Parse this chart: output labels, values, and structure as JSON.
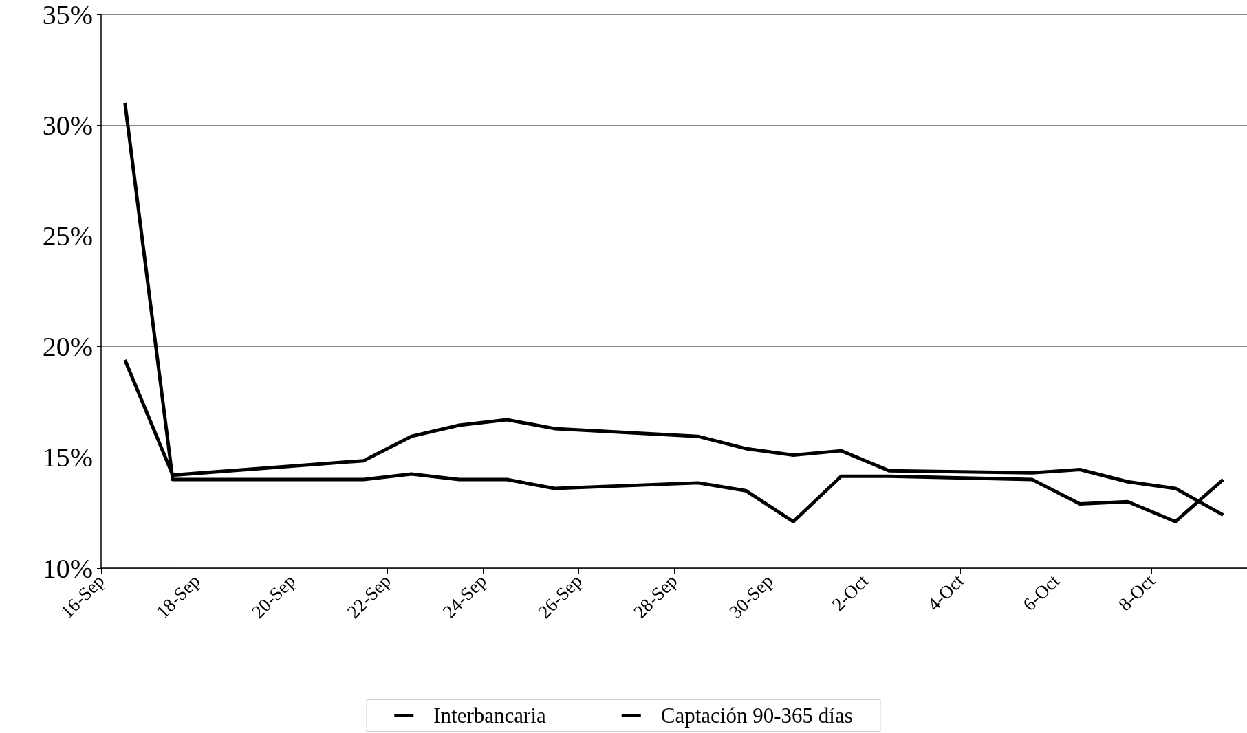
{
  "chart_data": {
    "type": "line",
    "x": [
      "--09-16T12:00",
      "--09-17T12:00",
      "--09-21T12:00",
      "--09-22T12:00",
      "--09-23T12:00",
      "--09-24T12:00",
      "--09-25T12:00",
      "--09-28T12:00",
      "--09-29T12:00",
      "--09-30T12:00",
      "--10-01T12:00",
      "--10-02T12:00",
      "--10-05T12:00",
      "--10-06T12:00",
      "--10-07T12:00",
      "--10-08T12:00",
      "--10-09T12:00"
    ],
    "series": [
      {
        "name": "Interbancaria",
        "color": "#000000",
        "values": [
          31.0,
          14.0,
          14.0,
          14.25,
          14.0,
          14.0,
          13.6,
          13.85,
          13.5,
          12.1,
          14.15,
          14.15,
          14.0,
          12.9,
          13.0,
          12.1,
          14.0
        ]
      },
      {
        "name": "Captación 90-365 días",
        "color": "#000000",
        "values": [
          19.4,
          14.2,
          14.85,
          15.95,
          16.45,
          16.7,
          16.3,
          15.95,
          15.4,
          15.1,
          15.3,
          14.4,
          14.3,
          14.45,
          13.9,
          13.6,
          12.4
        ]
      }
    ],
    "xlim": [
      "--09-16",
      "--10-10"
    ],
    "xticks": [
      {
        "value": "--09-16",
        "label": "16-Sep"
      },
      {
        "value": "--09-18",
        "label": "18-Sep"
      },
      {
        "value": "--09-20",
        "label": "20-Sep"
      },
      {
        "value": "--09-22",
        "label": "22-Sep"
      },
      {
        "value": "--09-24",
        "label": "24-Sep"
      },
      {
        "value": "--09-26",
        "label": "26-Sep"
      },
      {
        "value": "--09-28",
        "label": "28-Sep"
      },
      {
        "value": "--09-30",
        "label": "30-Sep"
      },
      {
        "value": "--10-02",
        "label": "2-Oct"
      },
      {
        "value": "--10-04",
        "label": "4-Oct"
      },
      {
        "value": "--10-06",
        "label": "6-Oct"
      },
      {
        "value": "--10-08",
        "label": "8-Oct"
      }
    ],
    "ylim": [
      10,
      35
    ],
    "yticks": [
      {
        "value": 10,
        "label": "10%"
      },
      {
        "value": 15,
        "label": "15%"
      },
      {
        "value": 20,
        "label": "20%"
      },
      {
        "value": 25,
        "label": "25%"
      },
      {
        "value": 30,
        "label": "30%"
      },
      {
        "value": 35,
        "label": "35%"
      }
    ],
    "grid": "y",
    "legend": "bottom",
    "marker": "none",
    "line_style": "solid"
  }
}
